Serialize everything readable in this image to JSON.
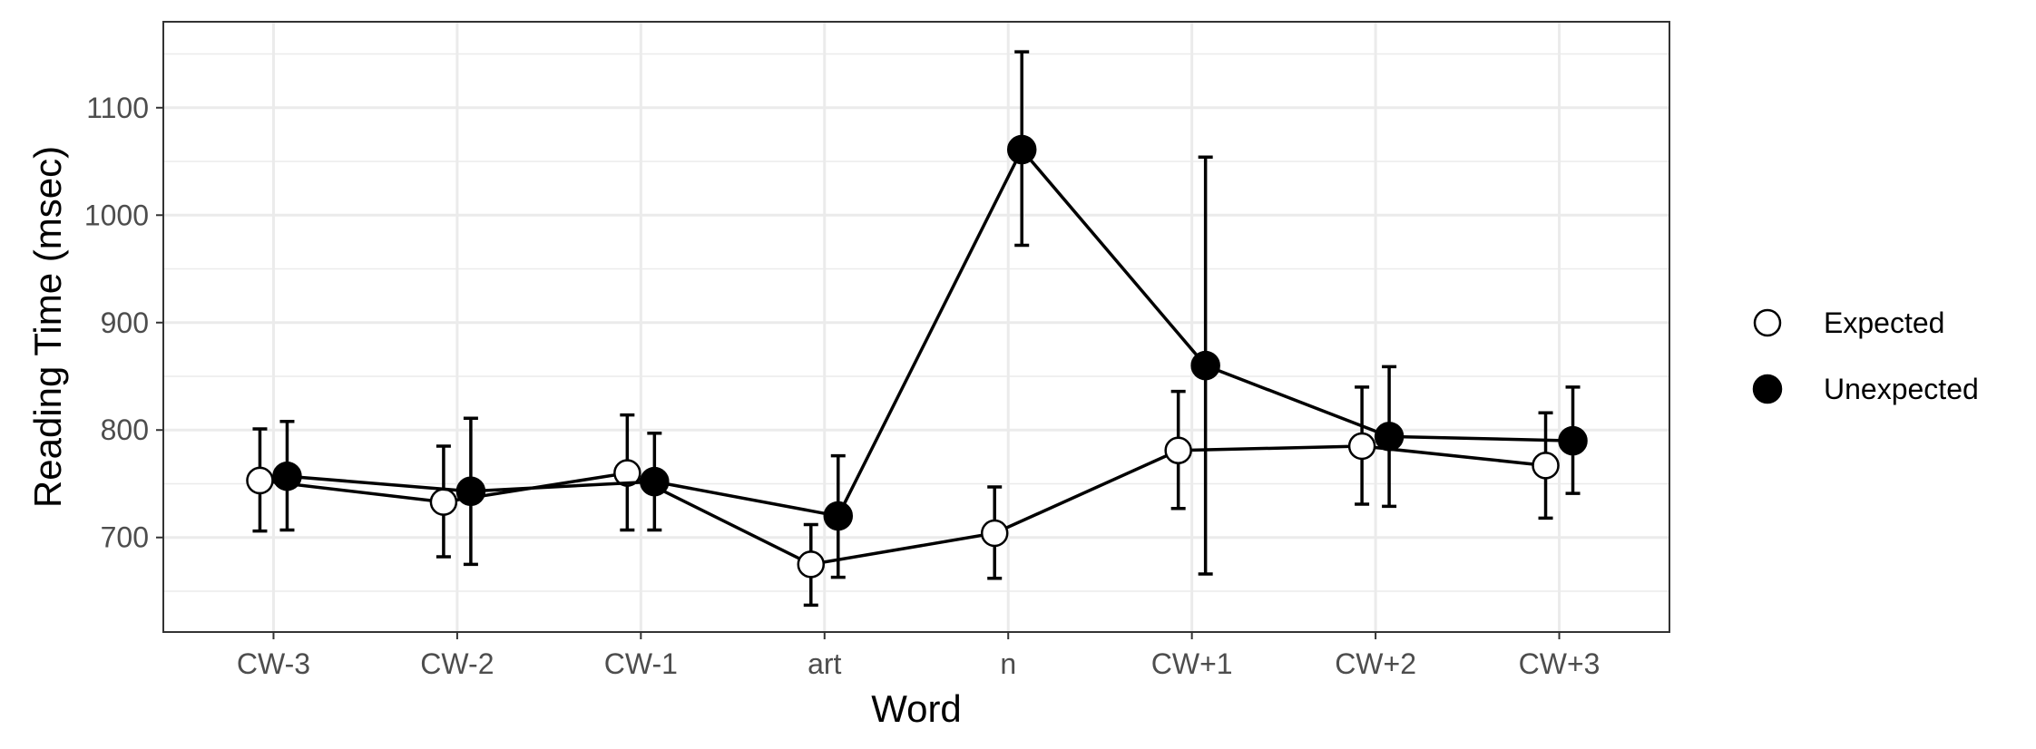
{
  "chart_data": {
    "type": "line",
    "xlabel": "Word",
    "ylabel": "Reading Time (msec)",
    "categories": [
      "CW-3",
      "CW-2",
      "CW-1",
      "art",
      "n",
      "CW+1",
      "CW+2",
      "CW+3"
    ],
    "ylim": [
      612,
      1180
    ],
    "yticks": [
      700,
      800,
      900,
      1000,
      1100
    ],
    "grid": true,
    "legend_position": "right",
    "series": [
      {
        "name": "Expected",
        "marker": "open-circle",
        "values": [
          753,
          733,
          760,
          675,
          704,
          781,
          785,
          767
        ],
        "error_low": [
          706,
          682,
          707,
          637,
          662,
          727,
          731,
          718
        ],
        "error_high": [
          801,
          785,
          814,
          712,
          747,
          836,
          840,
          816
        ]
      },
      {
        "name": "Unexpected",
        "marker": "filled-circle",
        "values": [
          757,
          743,
          752,
          720,
          1061,
          860,
          794,
          790
        ],
        "error_low": [
          707,
          675,
          707,
          663,
          972,
          666,
          729,
          741
        ],
        "error_high": [
          808,
          811,
          797,
          776,
          1152,
          1054,
          859,
          840
        ]
      }
    ],
    "colors": {
      "line": "#000000",
      "grid": "#ebebeb",
      "panel_border": "#333333",
      "tick_text": "#4d4d4d"
    }
  }
}
